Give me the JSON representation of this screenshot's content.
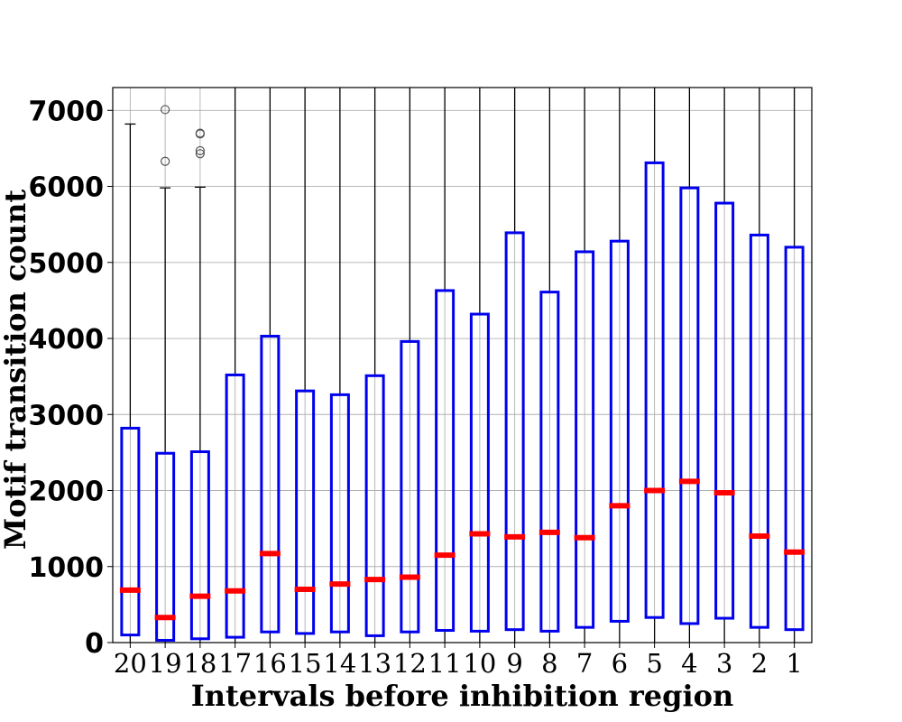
{
  "chart_data": {
    "type": "box",
    "title": "",
    "xlabel": "Intervals before inhibition region",
    "ylabel": "Motif transition count",
    "ylim": [
      0,
      7300
    ],
    "yticks": [
      0,
      1000,
      2000,
      3000,
      4000,
      5000,
      6000,
      7000
    ],
    "grid": true,
    "box_color": "#0000ee",
    "median_color": "#ff0000",
    "whisker_color": "#000000",
    "categories": [
      "20",
      "19",
      "18",
      "17",
      "16",
      "15",
      "14",
      "13",
      "12",
      "11",
      "10",
      "9",
      "8",
      "7",
      "6",
      "5",
      "4",
      "3",
      "2",
      "1"
    ],
    "boxes": [
      {
        "q1": 100,
        "median": 690,
        "q3": 2820,
        "whisker_low": 0,
        "whisker_high": 6820,
        "outliers": []
      },
      {
        "q1": 30,
        "median": 330,
        "q3": 2490,
        "whisker_low": 0,
        "whisker_high": 5980,
        "outliers": [
          6330,
          7010
        ]
      },
      {
        "q1": 50,
        "median": 610,
        "q3": 2510,
        "whisker_low": 0,
        "whisker_high": 5990,
        "outliers": [
          6430,
          6470,
          6690,
          6700
        ]
      },
      {
        "q1": 70,
        "median": 680,
        "q3": 3520,
        "whisker_low": 0,
        "whisker_high": 7300,
        "outliers": []
      },
      {
        "q1": 140,
        "median": 1170,
        "q3": 4030,
        "whisker_low": 0,
        "whisker_high": 7300,
        "outliers": []
      },
      {
        "q1": 120,
        "median": 700,
        "q3": 3310,
        "whisker_low": 0,
        "whisker_high": 7300,
        "outliers": []
      },
      {
        "q1": 140,
        "median": 770,
        "q3": 3260,
        "whisker_low": 0,
        "whisker_high": 7300,
        "outliers": []
      },
      {
        "q1": 90,
        "median": 830,
        "q3": 3510,
        "whisker_low": 0,
        "whisker_high": 7300,
        "outliers": []
      },
      {
        "q1": 140,
        "median": 860,
        "q3": 3960,
        "whisker_low": 0,
        "whisker_high": 7300,
        "outliers": []
      },
      {
        "q1": 160,
        "median": 1150,
        "q3": 4630,
        "whisker_low": 0,
        "whisker_high": 7300,
        "outliers": []
      },
      {
        "q1": 150,
        "median": 1430,
        "q3": 4320,
        "whisker_low": 0,
        "whisker_high": 7300,
        "outliers": []
      },
      {
        "q1": 170,
        "median": 1390,
        "q3": 5390,
        "whisker_low": 0,
        "whisker_high": 7300,
        "outliers": []
      },
      {
        "q1": 150,
        "median": 1450,
        "q3": 4610,
        "whisker_low": 0,
        "whisker_high": 7300,
        "outliers": []
      },
      {
        "q1": 200,
        "median": 1380,
        "q3": 5140,
        "whisker_low": 0,
        "whisker_high": 7300,
        "outliers": []
      },
      {
        "q1": 280,
        "median": 1800,
        "q3": 5280,
        "whisker_low": 0,
        "whisker_high": 7300,
        "outliers": []
      },
      {
        "q1": 330,
        "median": 2000,
        "q3": 6310,
        "whisker_low": 0,
        "whisker_high": 7300,
        "outliers": []
      },
      {
        "q1": 250,
        "median": 2120,
        "q3": 5980,
        "whisker_low": 0,
        "whisker_high": 7300,
        "outliers": []
      },
      {
        "q1": 320,
        "median": 1970,
        "q3": 5780,
        "whisker_low": 0,
        "whisker_high": 7300,
        "outliers": []
      },
      {
        "q1": 200,
        "median": 1400,
        "q3": 5360,
        "whisker_low": 0,
        "whisker_high": 7300,
        "outliers": []
      },
      {
        "q1": 170,
        "median": 1190,
        "q3": 5200,
        "whisker_low": 0,
        "whisker_high": 7300,
        "outliers": []
      }
    ]
  }
}
